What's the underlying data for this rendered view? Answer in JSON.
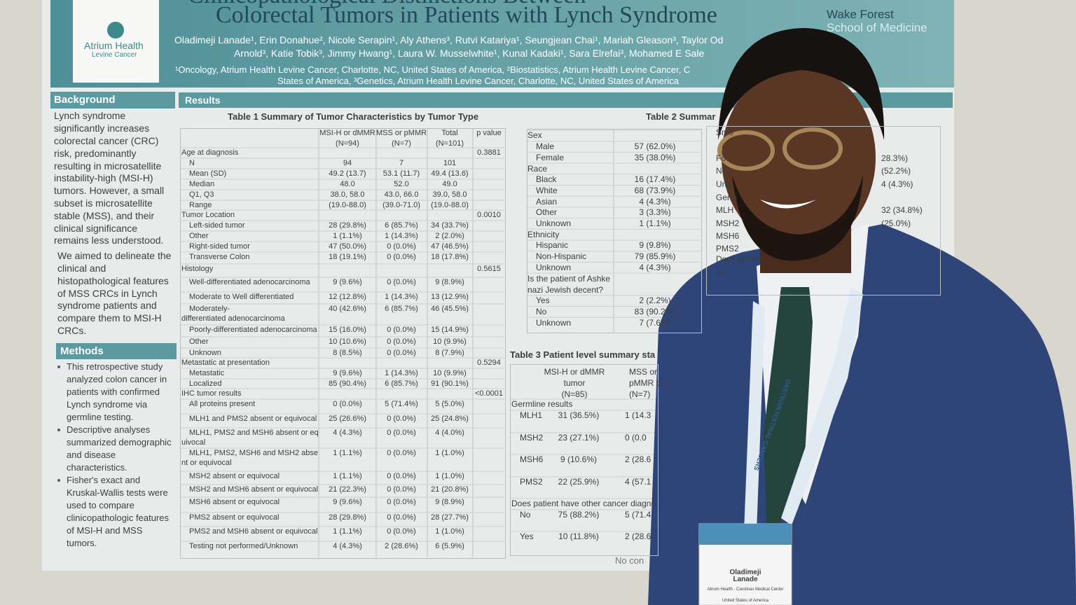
{
  "header": {
    "title_lines": [
      "Clinicopathological Distinctions Between",
      "Colorectal Tumors in Patients with Lynch Syndrome"
    ],
    "logo_left": [
      "Atrium Health",
      "Levine Cancer"
    ],
    "logo_right": [
      "Wake Forest",
      "School of Medicine"
    ],
    "authors": [
      "Oladimeji Lanade¹, Erin Donahue², Nicole Serapin¹, Aly Athens³, Rutvi Katariya¹, Seungjean Chai¹, Mariah Gleason³, Taylor Od",
      "Arnold³, Katie Tobik³, Jimmy Hwang¹, Laura W. Musselwhite¹, Kunal Kadaki¹, Sara Elrefai³, Mohamed E Sale"
    ],
    "affiliations": [
      "¹Oncology, Atrium Health Levine Cancer, Charlotte, NC, United States of America, ²Biostatistics, Atrium Health Levine Cancer, C",
      "States of America, ³Genetics, Atrium Health Levine Cancer, Charlotte, NC, United States of America"
    ]
  },
  "background": {
    "heading": "Background",
    "lines": [
      "Lynch syndrome",
      "significantly increases",
      "colorectal cancer (CRC)",
      "risk, predominantly",
      "resulting in microsatellite",
      "instability-high (MSI-H)",
      "tumors. However, a small",
      "subset is microsatellite",
      "stable (MSS), and their",
      "clinical significance",
      "remains less understood.",
      "We aimed to delineate the",
      "clinical and",
      "histopathological features",
      "of MSS CRCs in Lynch",
      "syndrome patients and",
      "compare them to MSI-H",
      "CRCs."
    ]
  },
  "methods": {
    "heading": "Methods",
    "lines": [
      "This retrospective study",
      "analyzed colon cancer in",
      "patients with confirmed",
      "Lynch syndrome via",
      "germline testing.",
      "Descriptive analyses",
      "summarized demographic",
      "and disease",
      "characteristics.",
      "Fisher's exact and",
      "Kruskal-Wallis tests were",
      "used to compare",
      "clinicopathologic features",
      "of MSI-H and MSS",
      "tumors."
    ]
  },
  "results": {
    "heading": "Results"
  },
  "table1": {
    "title": "Table 1 Summary of Tumor Characteristics by Tumor Type",
    "columns": [
      [
        "MSI-H or dMMR",
        "(N=94)"
      ],
      [
        "MSS or pMMR",
        "(N=7)"
      ],
      [
        "Total",
        "(N=101)"
      ],
      [
        "p value"
      ]
    ],
    "rows": [
      {
        "label": "Age at diagnosis",
        "p": "0.3881"
      },
      {
        "label": "N",
        "cells": [
          "94",
          "7",
          "101"
        ]
      },
      {
        "label": "Mean (SD)",
        "cells": [
          "49.2 (13.7)",
          "53.1 (11.7)",
          "49.4 (13.6)"
        ]
      },
      {
        "label": "Median",
        "cells": [
          "48.0",
          "52.0",
          "49.0"
        ]
      },
      {
        "label": "Q1, Q3",
        "cells": [
          "38.0, 58.0",
          "43.0, 66.0",
          "39.0, 58.0"
        ]
      },
      {
        "label": "Range",
        "cells": [
          "(19.0-88.0)",
          "(39.0-71.0)",
          "(19.0-88.0)"
        ]
      },
      {
        "label": "Tumor Location",
        "p": "0.0010"
      },
      {
        "label": "Left-sided tumor",
        "cells": [
          "28 (29.8%)",
          "6 (85.7%)",
          "34 (33.7%)"
        ]
      },
      {
        "label": "Other",
        "cells": [
          "1 (1.1%)",
          "1 (14.3%)",
          "2 (2.0%)"
        ]
      },
      {
        "label": "Right-sided tumor",
        "cells": [
          "47 (50.0%)",
          "0 (0.0%)",
          "47 (46.5%)"
        ]
      },
      {
        "label": "Transverse Colon",
        "cells": [
          "18 (19.1%)",
          "0 (0.0%)",
          "18 (17.8%)"
        ]
      },
      {
        "label": "Histology",
        "p": "0.5615"
      },
      {
        "label": "Well-differentiated adenocarcinoma",
        "cells": [
          "9 (9.6%)",
          "0 (0.0%)",
          "9 (8.9%)"
        ]
      },
      {
        "label": "Moderate to Well differentiated",
        "cells": [
          "12 (12.8%)",
          "1 (14.3%)",
          "13 (12.9%)"
        ]
      },
      {
        "label": [
          "Moderately-",
          "differentiated adenocarcinoma"
        ],
        "cells": [
          "40 (42.6%)",
          "6 (85.7%)",
          "46 (45.5%)"
        ]
      },
      {
        "label": "Poorly-differentiated adenocarcinoma",
        "cells": [
          "15 (16.0%)",
          "0 (0.0%)",
          "15 (14.9%)"
        ]
      },
      {
        "label": "Other",
        "cells": [
          "10 (10.6%)",
          "0 (0.0%)",
          "10 (9.9%)"
        ]
      },
      {
        "label": "Unknown",
        "cells": [
          "8 (8.5%)",
          "0 (0.0%)",
          "8 (7.9%)"
        ]
      },
      {
        "label": "Metastatic at presentation",
        "p": "0.5294"
      },
      {
        "label": "Metastatic",
        "cells": [
          "9 (9.6%)",
          "1 (14.3%)",
          "10 (9.9%)"
        ]
      },
      {
        "label": "Localized",
        "cells": [
          "85 (90.4%)",
          "6 (85.7%)",
          "91 (90.1%)"
        ]
      },
      {
        "label": "IHC tumor results",
        "p": "<0.0001"
      },
      {
        "label": "All proteins present",
        "cells": [
          "0 (0.0%)",
          "5 (71.4%)",
          "5 (5.0%)"
        ]
      },
      {
        "label": "MLH1 and PMS2 absent or equivocal",
        "cells": [
          "25 (26.6%)",
          "0 (0.0%)",
          "25 (24.8%)"
        ]
      },
      {
        "label": [
          "MLH1, PMS2 and MSH6 absent or eq",
          "uivocal"
        ],
        "cells": [
          "4 (4.3%)",
          "0 (0.0%)",
          "4 (4.0%)"
        ]
      },
      {
        "label": [
          "MLH1, PMS2, MSH6 and MSH2 abse",
          "nt or equivocal"
        ],
        "cells": [
          "1 (1.1%)",
          "0 (0.0%)",
          "1 (1.0%)"
        ]
      },
      {
        "label": "MSH2 absent or equivocal",
        "cells": [
          "1 (1.1%)",
          "0 (0.0%)",
          "1 (1.0%)"
        ]
      },
      {
        "label": "MSH2 and MSH6 absent or equivocal",
        "cells": [
          "21 (22.3%)",
          "0 (0.0%)",
          "21 (20.8%)"
        ]
      },
      {
        "label": "MSH6 absent or equivocal",
        "cells": [
          "9 (9.6%)",
          "0 (0.0%)",
          "9 (8.9%)"
        ]
      },
      {
        "label": "PMS2 absent or equivocal",
        "cells": [
          "28 (29.8%)",
          "0 (0.0%)",
          "28 (27.7%)"
        ]
      },
      {
        "label": "PMS2 and MSH6 absent or equivocal",
        "cells": [
          "1 (1.1%)",
          "0 (0.0%)",
          "1 (1.0%)"
        ]
      },
      {
        "label": "Testing not performed/Unknown",
        "cells": [
          "4 (4.3%)",
          "2 (28.6%)",
          "6 (5.9%)"
        ]
      }
    ]
  },
  "table2": {
    "title": "Table 2 Summar",
    "rows": [
      {
        "label": "Sex"
      },
      {
        "label": "Male",
        "value": "57 (62.0%)"
      },
      {
        "label": "Female",
        "value": "35 (38.0%)"
      },
      {
        "label": "Race"
      },
      {
        "label": "Black",
        "value": "16 (17.4%)"
      },
      {
        "label": "White",
        "value": "68 (73.9%)"
      },
      {
        "label": "Asian",
        "value": "4 (4.3%)"
      },
      {
        "label": "Other",
        "value": "3 (3.3%)"
      },
      {
        "label": "Unknown",
        "value": "1 (1.1%)"
      },
      {
        "label": "Ethnicity"
      },
      {
        "label": "Hispanic",
        "value": "9 (9.8%)"
      },
      {
        "label": "Non-Hispanic",
        "value": "79 (85.9%)"
      },
      {
        "label": "Unknown",
        "value": "4 (4.3%)"
      },
      {
        "label": [
          "Is the patient of Ashke",
          "nazi Jewish decent?"
        ]
      },
      {
        "label": "Yes",
        "value": "2 (2.2%)"
      },
      {
        "label": "No",
        "value": "83 (90.2%)"
      },
      {
        "label": "Unknown",
        "value": "7 (7.6%)"
      }
    ],
    "right_fragment": [
      [
        "Smo",
        ""
      ],
      [
        "Fo",
        "28.3%)"
      ],
      [
        "Ne",
        "(52.2%)"
      ],
      [
        "Unk",
        "4 (4.3%)"
      ],
      [
        "Germ",
        ""
      ],
      [
        "MLH",
        "32 (34.8%)"
      ],
      [
        "MSH2",
        "(25.0%)"
      ],
      [
        "MSH6",
        ""
      ],
      [
        "PMS2",
        ""
      ],
      [
        "Does patient",
        ""
      ],
      [
        "No",
        ""
      ]
    ]
  },
  "table3": {
    "title": "Table 3 Patient level summary sta",
    "columns": [
      [
        "MSI-H or dMMR",
        "tumor",
        "(N=85)"
      ],
      [
        "MSS or",
        "pMMR tu",
        "(N=7)"
      ]
    ],
    "rows": [
      {
        "label": "Germline results"
      },
      {
        "label": "MLH1",
        "cells": [
          "31 (36.5%)",
          "1 (14.3"
        ]
      },
      {
        "label": "MSH2",
        "cells": [
          "23 (27.1%)",
          "0 (0.0"
        ]
      },
      {
        "label": "MSH6",
        "cells": [
          "9 (10.6%)",
          "2 (28.6"
        ]
      },
      {
        "label": "PMS2",
        "cells": [
          "22 (25.9%)",
          "4 (57.1"
        ]
      },
      {
        "label": "Does patient have other cancer diagno"
      },
      {
        "label": "No",
        "cells": [
          "75 (88.2%)",
          "5 (71.4"
        ]
      },
      {
        "label": "Yes",
        "cells": [
          "10 (11.8%)",
          "2 (28.6"
        ]
      }
    ],
    "footer": "No con"
  },
  "badge": {
    "lanyard": "GASTROINTESTINAL CANCERS",
    "name": [
      "Oladimeji",
      "Lanade"
    ],
    "org": "Atrium Health - Carolinas Medical Center",
    "country": "United States of America"
  }
}
